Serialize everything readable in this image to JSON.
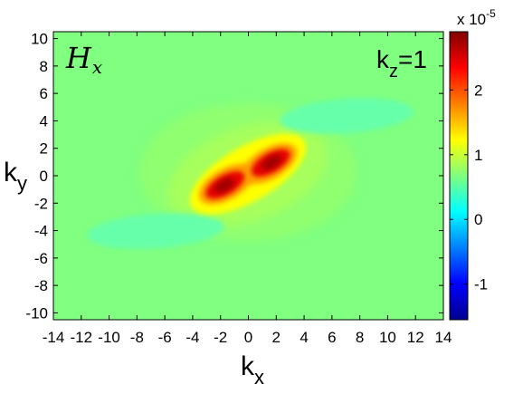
{
  "chart_data": {
    "type": "heatmap",
    "title": "",
    "xlabel": {
      "main": "k",
      "sub": "x"
    },
    "ylabel": {
      "main": "k",
      "sub": "y"
    },
    "xlim": [
      -14,
      14
    ],
    "ylim": [
      -10.5,
      10.5
    ],
    "x_ticks": [
      "-14",
      "-12",
      "-10",
      "-8",
      "-6",
      "-4",
      "-2",
      "0",
      "2",
      "4",
      "6",
      "8",
      "10",
      "12",
      "14"
    ],
    "y_ticks": [
      "10",
      "8",
      "6",
      "4",
      "2",
      "0",
      "-2",
      "-4",
      "-6",
      "-8",
      "-10"
    ],
    "annotations": {
      "quantity": {
        "script": "H",
        "sub": "x"
      },
      "slice": {
        "main": "k",
        "sub": "z",
        "rest": "=1"
      }
    },
    "colorbar": {
      "colormap": "jet",
      "range": [
        -1.55,
        2.9
      ],
      "ticks": [
        "2",
        "1",
        "0",
        "-1"
      ],
      "scale_label": {
        "base": "x 10",
        "exp": "-5"
      }
    },
    "background_level": 0.0,
    "features": [
      {
        "name": "positive lobe upper-left",
        "kx": -1.5,
        "ky": 0.9,
        "value": 2.8
      },
      {
        "name": "positive lobe lower-right",
        "kx": 1.5,
        "ky": -0.9,
        "value": 2.8
      },
      {
        "name": "negative band upper-right",
        "kx": 6.5,
        "ky": 4.6,
        "value": -0.1
      },
      {
        "name": "negative band lower-left",
        "kx": -6.5,
        "ky": -4.6,
        "value": -0.1
      }
    ],
    "grid": false,
    "legend": "colorbar-right"
  }
}
